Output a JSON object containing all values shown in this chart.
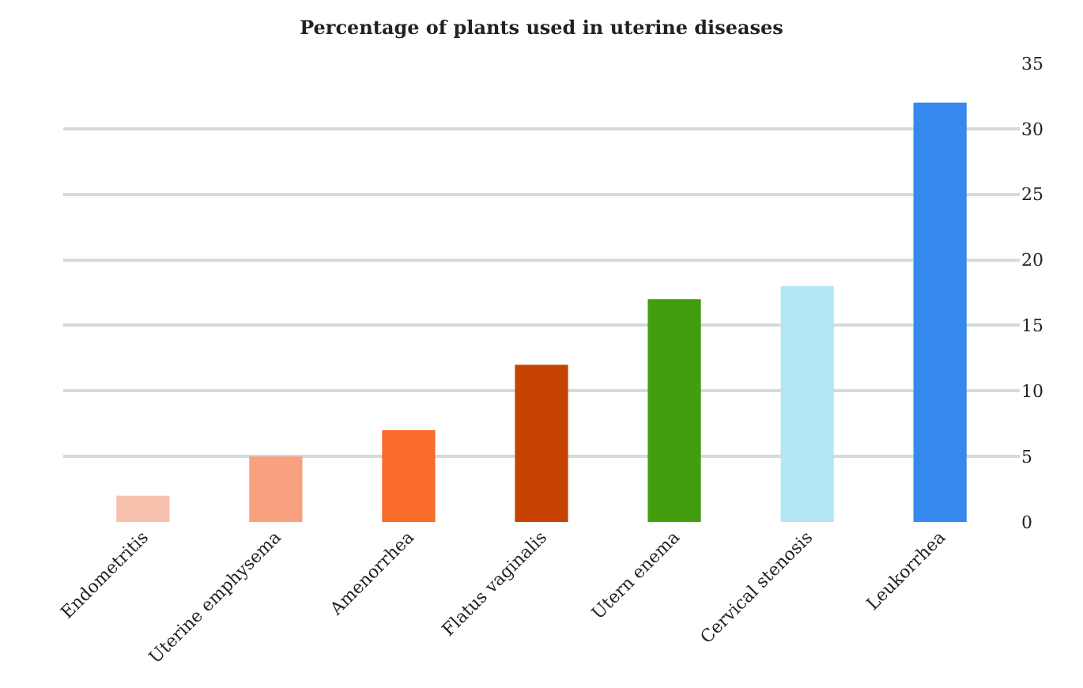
{
  "chart_data": {
    "type": "bar",
    "title": "Percentage of plants used in uterine diseases",
    "categories": [
      "Endometritis",
      "Uterine emphysema",
      "Amenorrhea",
      "Flatus vaginalis",
      "Utern enema",
      "Cervical stenosis",
      "Leukorrhea"
    ],
    "values": [
      2,
      5,
      7,
      12,
      17,
      18,
      32
    ],
    "colors": [
      "#f8c1ad",
      "#f9a07f",
      "#f96b2a",
      "#c64304",
      "#429e0e",
      "#b4e6f4",
      "#3488ee"
    ],
    "ylim": [
      0,
      35
    ],
    "yticks": [
      0,
      5,
      10,
      15,
      20,
      25,
      30,
      35
    ],
    "grid": "y"
  }
}
